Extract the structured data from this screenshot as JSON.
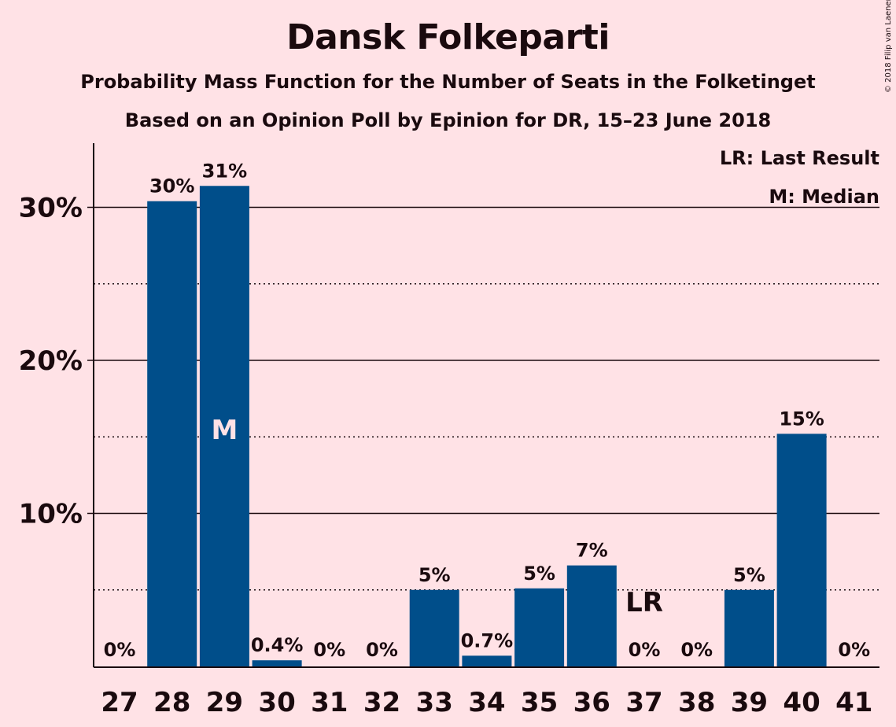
{
  "title": "Dansk Folkeparti",
  "subtitle": "Probability Mass Function for the Number of Seats in the Folketinget",
  "subtitle2": "Based on an Opinion Poll by Epinion for DR, 15–23 June 2018",
  "copyright": "© 2018 Filip van Laenen",
  "legend": {
    "last_result": "LR: Last Result",
    "median": "M: Median"
  },
  "colors": {
    "background": "#FFE2E6",
    "bar": "#004E8A",
    "text": "#1a0a0e"
  },
  "chart_data": {
    "type": "bar",
    "categories": [
      "27",
      "28",
      "29",
      "30",
      "31",
      "32",
      "33",
      "34",
      "35",
      "36",
      "37",
      "38",
      "39",
      "40",
      "41"
    ],
    "values": [
      0,
      30.4,
      31.4,
      0.4,
      0,
      0,
      5.0,
      0.7,
      5.1,
      6.6,
      0,
      0,
      5.0,
      15.2,
      0
    ],
    "value_labels": [
      "0%",
      "30%",
      "31%",
      "0.4%",
      "0%",
      "0%",
      "5%",
      "0.7%",
      "5%",
      "7%",
      "0%",
      "0%",
      "5%",
      "15%",
      "0%"
    ],
    "y_ticks": [
      {
        "value": 10,
        "label": "10%"
      },
      {
        "value": 20,
        "label": "20%"
      },
      {
        "value": 30,
        "label": "30%"
      }
    ],
    "minor_gridlines": [
      5,
      15,
      25
    ],
    "ylim": [
      0,
      34
    ],
    "median_category": "29",
    "median_marker": "M",
    "last_result_category": "37",
    "last_result_marker": "LR",
    "legend_position": "top-right"
  }
}
